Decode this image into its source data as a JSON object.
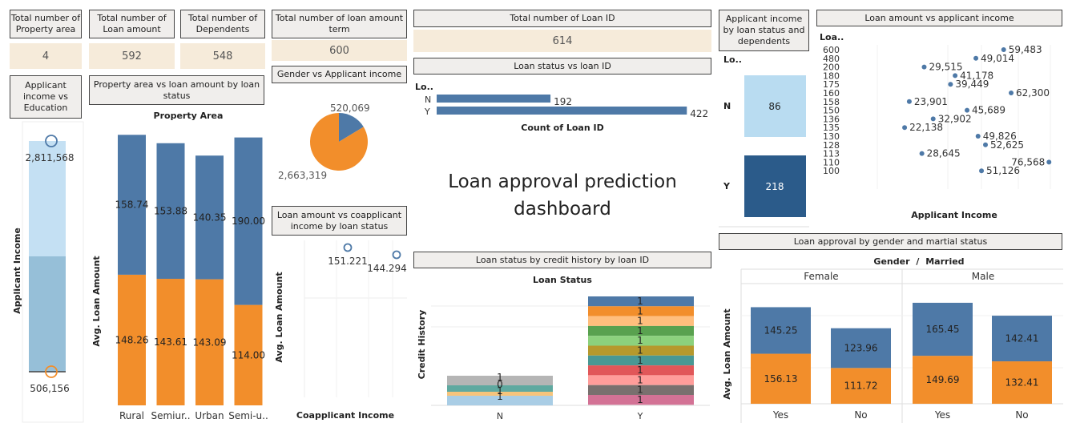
{
  "kpis": {
    "property_area": {
      "title": "Total number of Property area",
      "value": "4"
    },
    "loan_amount": {
      "title": "Total number of Loan amount",
      "value": "592"
    },
    "dependents": {
      "title": "Total number of Dependents",
      "value": "548"
    },
    "loan_term": {
      "title": "Total number of loan amount term",
      "value": "600"
    },
    "loan_id": {
      "title": "Total number of Loan ID",
      "value": "614"
    }
  },
  "headers": {
    "edu": "Applicant income vs Education",
    "prop": "Property area vs loan amount by loan status",
    "gender_income": "Gender vs Applicant income",
    "coapp": "Loan amount vs coapplicant income by loan status",
    "status_id": "Loan status vs loan ID",
    "credit": "Loan status by credit history by loan ID",
    "dependents": "Applicant income by loan status and dependents",
    "amount_income": "Loan amount vs applicant income",
    "gender_married": "Loan approval by gender and martial status"
  },
  "dashboard_title_line1": "Loan approval prediction",
  "dashboard_title_line2": "dashboard",
  "colors": {
    "blue": "#4e79a7",
    "orange": "#f28e2b",
    "light_blue": "#a9cde5",
    "dark_blue": "#2b5b8a",
    "header_bg": "#f0eeec",
    "kpi_bg": "#f6ebda"
  },
  "chart_data": [
    {
      "id": "edu",
      "type": "bar",
      "ylabel": "Applicant Income",
      "labels": [
        "2,811,568",
        "506,156"
      ],
      "values": [
        2811568,
        506156
      ]
    },
    {
      "id": "prop",
      "type": "bar",
      "title": "Property Area",
      "ylabel": "Avg. Loan Amount",
      "categories": [
        "Rural",
        "Semiur..",
        "Urban",
        "Semi-u.."
      ],
      "series": [
        {
          "values": [
            148.26,
            143.61,
            143.09,
            114.0
          ],
          "labels": [
            "148.26",
            "143.61",
            "143.09",
            "114.00"
          ]
        },
        {
          "values": [
            158.74,
            153.88,
            140.35,
            190.0
          ],
          "labels": [
            "158.74",
            "153.88",
            "140.35",
            "190.00"
          ]
        }
      ]
    },
    {
      "id": "pie",
      "type": "pie",
      "values": [
        520069,
        2663319
      ],
      "labels": [
        "520,069",
        "2,663,319"
      ]
    },
    {
      "id": "coapp",
      "type": "scatter",
      "xlabel": "Coapplicant Income",
      "ylabel": "Avg. Loan Amount",
      "labels": [
        "151.221",
        "144.294"
      ],
      "values": [
        151.221,
        144.294
      ]
    },
    {
      "id": "status_id",
      "type": "bar",
      "xlabel": "Count of Loan ID",
      "axis_header": "Lo..",
      "categories": [
        "N",
        "Y"
      ],
      "values": [
        192,
        422
      ],
      "labels": [
        "192",
        "422"
      ]
    },
    {
      "id": "credit",
      "type": "bar",
      "title": "Loan Status",
      "ylabel": "Credit History",
      "categories": [
        "N",
        "Y"
      ],
      "n_labels": [
        "1",
        "0",
        "1",
        "1"
      ],
      "y_labels": [
        "1",
        "1",
        "1",
        "1",
        "1",
        "1",
        "1",
        "1",
        "1",
        "1",
        "1"
      ]
    },
    {
      "id": "dependents",
      "type": "heatmap",
      "axis_header": "Lo..",
      "rows": [
        "N",
        "Y"
      ],
      "values": [
        86,
        218
      ],
      "labels": [
        "86",
        "218"
      ]
    },
    {
      "id": "amount_income",
      "type": "scatter",
      "xlabel": "Applicant Income",
      "axis_header": "Loa..",
      "categories": [
        "600",
        "480",
        "200",
        "180",
        "175",
        "160",
        "158",
        "150",
        "136",
        "135",
        "130",
        "128",
        "113",
        "110",
        "100"
      ],
      "points": [
        {
          "row": "600",
          "value": 59483,
          "label": "59,483"
        },
        {
          "row": "480",
          "value": 49014,
          "label": "49,014"
        },
        {
          "row": "200",
          "value": 29515,
          "label": "29,515"
        },
        {
          "row": "180",
          "value": 41178,
          "label": "41,178"
        },
        {
          "row": "175",
          "value": 39449,
          "label": "39,449"
        },
        {
          "row": "160",
          "value": 62300,
          "label": "62,300"
        },
        {
          "row": "158",
          "value": 23901,
          "label": "23,901"
        },
        {
          "row": "150",
          "value": 45689,
          "label": "45,689"
        },
        {
          "row": "136",
          "value": 32902,
          "label": "32,902"
        },
        {
          "row": "135",
          "value": 22138,
          "label": "22,138"
        },
        {
          "row": "130",
          "value": 49826,
          "label": "49,826"
        },
        {
          "row": "128",
          "value": 52625,
          "label": "52,625"
        },
        {
          "row": "113",
          "value": 28645,
          "label": "28,645"
        },
        {
          "row": "110",
          "value": 76568,
          "label": "76,568"
        },
        {
          "row": "100",
          "value": 51126,
          "label": "51,126"
        }
      ]
    },
    {
      "id": "gender_married",
      "type": "bar",
      "title_left": "Gender",
      "title_sep": "/",
      "title_right": "Married",
      "ylabel": "Avg. Loan Amount",
      "groups": [
        "Female",
        "Male"
      ],
      "categories": [
        "Yes",
        "No",
        "Yes",
        "No"
      ],
      "series": [
        {
          "values": [
            156.13,
            111.72,
            149.69,
            132.41
          ],
          "labels": [
            "156.13",
            "111.72",
            "149.69",
            "132.41"
          ]
        },
        {
          "values": [
            145.25,
            123.96,
            165.45,
            142.41
          ],
          "labels": [
            "145.25",
            "123.96",
            "165.45",
            "142.41"
          ]
        }
      ]
    }
  ]
}
